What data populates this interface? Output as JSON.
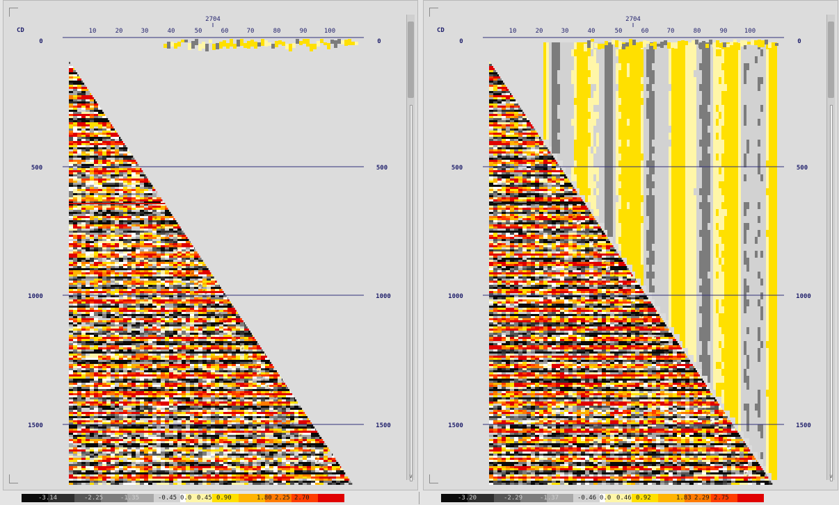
{
  "panels": [
    {
      "id": "left",
      "header": {
        "cdp_label": "CD",
        "trace_number": "2704"
      },
      "x_ticks": [
        "10",
        "20",
        "30",
        "40",
        "50",
        "60",
        "70",
        "80",
        "90",
        "100"
      ],
      "time_labels": [
        "0",
        "500",
        "1000",
        "1500"
      ],
      "colorbar_labels": [
        "-3.14",
        "-2.25",
        "-1.35",
        "-0.45",
        "0.0",
        "0.45",
        "0.90",
        "1.80",
        "2.25",
        "2.70"
      ]
    },
    {
      "id": "right",
      "header": {
        "cdp_label": "CD",
        "trace_number": "2704"
      },
      "x_ticks": [
        "10",
        "20",
        "30",
        "40",
        "50",
        "60",
        "70",
        "80",
        "90",
        "100"
      ],
      "time_labels": [
        "0",
        "500",
        "1000",
        "1500"
      ],
      "colorbar_labels": [
        "-3.20",
        "-2.29",
        "-1.37",
        "-0.46",
        "0.0",
        "0.46",
        "0.92",
        "1.83",
        "2.29",
        "2.75"
      ]
    }
  ],
  "colormap": {
    "colors": [
      "#0a0a0a",
      "#2e2e2e",
      "#555555",
      "#7c7c7c",
      "#a8a8a8",
      "#d2d2d2",
      "#ffffff",
      "#fff6a8",
      "#ffe000",
      "#ffb400",
      "#ff7a00",
      "#ff3c00",
      "#e00000"
    ]
  },
  "scroll_icon": "arrow-down-icon"
}
